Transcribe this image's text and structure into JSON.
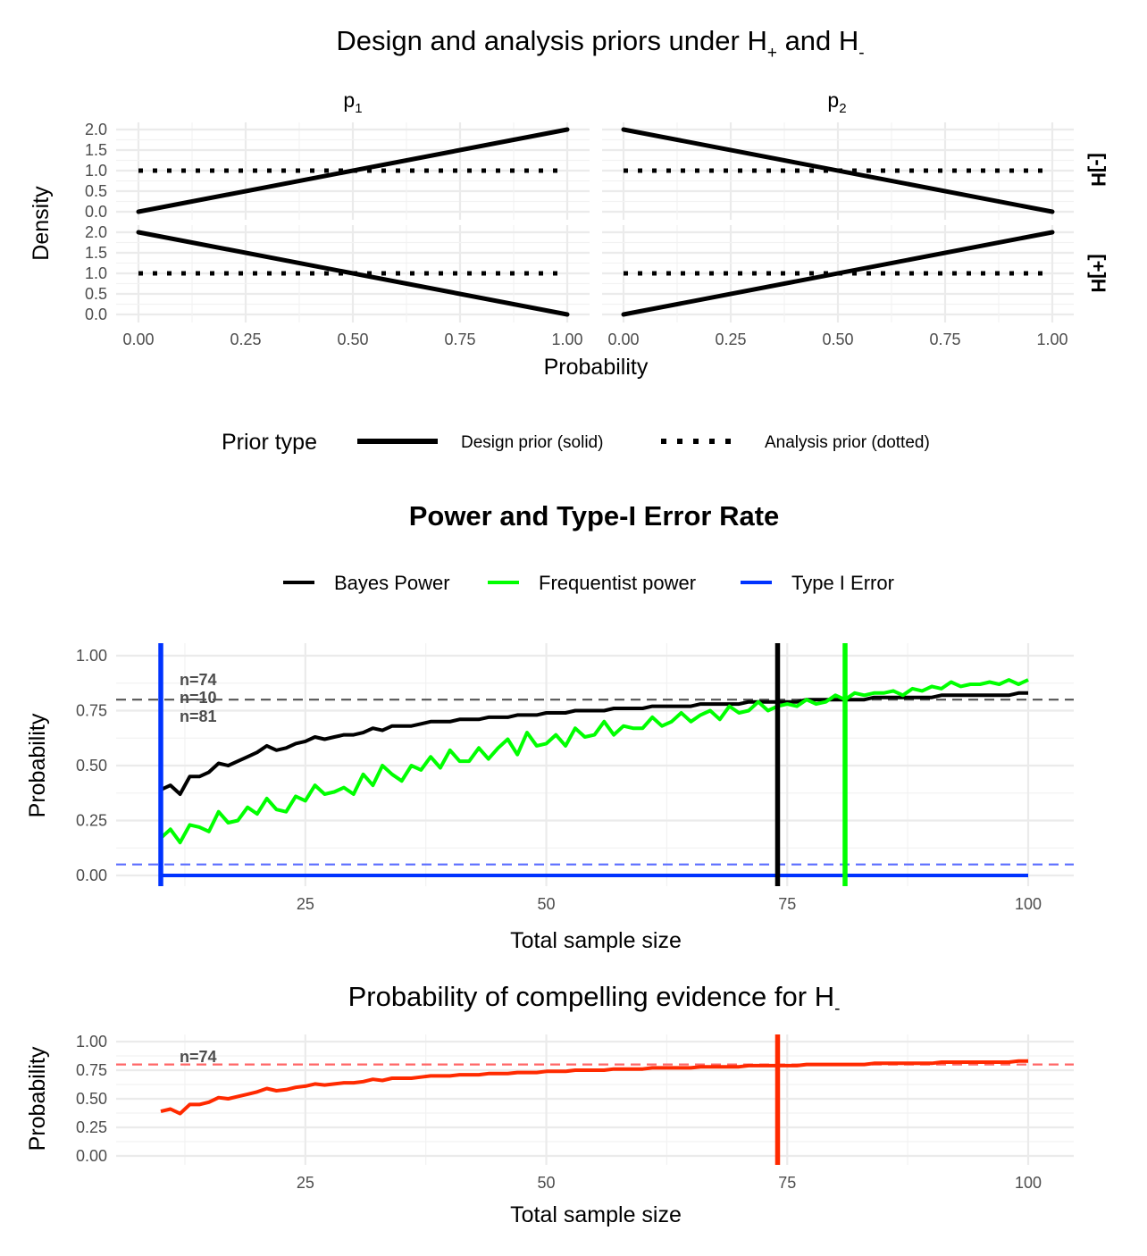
{
  "chart_data": [
    {
      "type": "line",
      "title": "Design and analysis priors under H",
      "title_sub1": "+",
      "title_mid": " and H",
      "title_sub2": "-",
      "facet_columns": [
        {
          "label": "p",
          "sub": "1"
        },
        {
          "label": "p",
          "sub": "2"
        }
      ],
      "facet_rows": [
        "[-]H",
        "[+]H"
      ],
      "xlabel": "Probability",
      "ylabel": "Density",
      "xlim": [
        0,
        1
      ],
      "ylim": [
        0,
        2
      ],
      "x_ticks": [
        "0.00",
        "0.25",
        "0.50",
        "0.75",
        "1.00"
      ],
      "y_ticks": [
        "0.0",
        "0.5",
        "1.0",
        "1.5",
        "2.0"
      ],
      "grid": true,
      "legend": {
        "title": "Prior type",
        "position": "bottom",
        "entries": [
          "Design prior (solid)",
          "Analysis prior (dotted)"
        ]
      },
      "panels": [
        {
          "row": "[-]H",
          "column": "p1",
          "design": {
            "x": [
              0,
              1
            ],
            "y": [
              0,
              2
            ]
          },
          "analysis": {
            "x": [
              0,
              1
            ],
            "y": [
              1,
              1
            ]
          }
        },
        {
          "row": "[-]H",
          "column": "p2",
          "design": {
            "x": [
              0,
              1
            ],
            "y": [
              2,
              0
            ]
          },
          "analysis": {
            "x": [
              0,
              1
            ],
            "y": [
              1,
              1
            ]
          }
        },
        {
          "row": "[+]H",
          "column": "p1",
          "design": {
            "x": [
              0,
              1
            ],
            "y": [
              2,
              0
            ]
          },
          "analysis": {
            "x": [
              0,
              1
            ],
            "y": [
              1,
              1
            ]
          }
        },
        {
          "row": "[+]H",
          "column": "p2",
          "design": {
            "x": [
              0,
              1
            ],
            "y": [
              0,
              2
            ]
          },
          "analysis": {
            "x": [
              0,
              1
            ],
            "y": [
              1,
              1
            ]
          }
        }
      ]
    },
    {
      "type": "line",
      "title": "Power and Type-I Error Rate",
      "xlabel": "Total sample size",
      "ylabel": "Probability",
      "xlim": [
        10,
        100
      ],
      "ylim": [
        0,
        1
      ],
      "x_ticks": [
        25,
        50,
        75,
        100
      ],
      "y_ticks": [
        "0.00",
        "0.25",
        "0.50",
        "0.75",
        "1.00"
      ],
      "grid": true,
      "legend_position": "top",
      "x": [
        10,
        11,
        12,
        13,
        14,
        15,
        16,
        17,
        18,
        19,
        20,
        21,
        22,
        23,
        24,
        25,
        26,
        27,
        28,
        29,
        30,
        31,
        32,
        33,
        34,
        35,
        36,
        37,
        38,
        39,
        40,
        41,
        42,
        43,
        44,
        45,
        46,
        47,
        48,
        49,
        50,
        51,
        52,
        53,
        54,
        55,
        56,
        57,
        58,
        59,
        60,
        61,
        62,
        63,
        64,
        65,
        66,
        67,
        68,
        69,
        70,
        71,
        72,
        73,
        74,
        75,
        76,
        77,
        78,
        79,
        80,
        81,
        82,
        83,
        84,
        85,
        86,
        87,
        88,
        89,
        90,
        91,
        92,
        93,
        94,
        95,
        96,
        97,
        98,
        99,
        100
      ],
      "series": [
        {
          "name": "Bayes Power",
          "color": "#000000",
          "values": [
            0.39,
            0.41,
            0.37,
            0.45,
            0.45,
            0.47,
            0.51,
            0.5,
            0.52,
            0.54,
            0.56,
            0.59,
            0.57,
            0.58,
            0.6,
            0.61,
            0.63,
            0.62,
            0.63,
            0.64,
            0.64,
            0.65,
            0.67,
            0.66,
            0.68,
            0.68,
            0.68,
            0.69,
            0.7,
            0.7,
            0.7,
            0.71,
            0.71,
            0.71,
            0.72,
            0.72,
            0.72,
            0.73,
            0.73,
            0.73,
            0.74,
            0.74,
            0.74,
            0.75,
            0.75,
            0.75,
            0.75,
            0.76,
            0.76,
            0.76,
            0.76,
            0.77,
            0.77,
            0.77,
            0.77,
            0.77,
            0.78,
            0.78,
            0.78,
            0.78,
            0.78,
            0.79,
            0.79,
            0.79,
            0.79,
            0.79,
            0.79,
            0.8,
            0.8,
            0.8,
            0.8,
            0.8,
            0.8,
            0.8,
            0.81,
            0.81,
            0.81,
            0.81,
            0.81,
            0.81,
            0.81,
            0.82,
            0.82,
            0.82,
            0.82,
            0.82,
            0.82,
            0.82,
            0.82,
            0.83,
            0.83
          ]
        },
        {
          "name": "Frequentist power",
          "color": "#00ff00",
          "values": [
            0.17,
            0.21,
            0.15,
            0.23,
            0.22,
            0.2,
            0.29,
            0.24,
            0.25,
            0.31,
            0.28,
            0.35,
            0.3,
            0.29,
            0.36,
            0.34,
            0.41,
            0.37,
            0.38,
            0.4,
            0.37,
            0.46,
            0.41,
            0.5,
            0.46,
            0.43,
            0.5,
            0.48,
            0.54,
            0.49,
            0.57,
            0.52,
            0.52,
            0.58,
            0.53,
            0.58,
            0.62,
            0.55,
            0.65,
            0.59,
            0.6,
            0.64,
            0.59,
            0.67,
            0.63,
            0.64,
            0.7,
            0.64,
            0.68,
            0.67,
            0.67,
            0.72,
            0.68,
            0.7,
            0.74,
            0.7,
            0.73,
            0.75,
            0.71,
            0.77,
            0.74,
            0.75,
            0.79,
            0.75,
            0.77,
            0.78,
            0.77,
            0.8,
            0.78,
            0.79,
            0.82,
            0.8,
            0.83,
            0.82,
            0.83,
            0.83,
            0.84,
            0.82,
            0.85,
            0.84,
            0.86,
            0.85,
            0.88,
            0.86,
            0.87,
            0.87,
            0.88,
            0.87,
            0.89,
            0.87,
            0.89
          ]
        },
        {
          "name": "Type I Error",
          "color": "#0033ff",
          "values": [
            0.0,
            0.0,
            0.0,
            0.0,
            0.0,
            0.0,
            0.0,
            0.0,
            0.0,
            0.0,
            0.0,
            0.0,
            0.0,
            0.0,
            0.0,
            0.0,
            0.0,
            0.0,
            0.0,
            0.0,
            0.0,
            0.0,
            0.0,
            0.0,
            0.0,
            0.0,
            0.0,
            0.0,
            0.0,
            0.0,
            0.0,
            0.0,
            0.0,
            0.0,
            0.0,
            0.0,
            0.0,
            0.0,
            0.0,
            0.0,
            0.0,
            0.0,
            0.0,
            0.0,
            0.0,
            0.0,
            0.0,
            0.0,
            0.0,
            0.0,
            0.0,
            0.0,
            0.0,
            0.0,
            0.0,
            0.0,
            0.0,
            0.0,
            0.0,
            0.0,
            0.0,
            0.0,
            0.0,
            0.0,
            0.0,
            0.0,
            0.0,
            0.0,
            0.0,
            0.0,
            0.0,
            0.0,
            0.0,
            0.0,
            0.0,
            0.0,
            0.0,
            0.0,
            0.0,
            0.0,
            0.0,
            0.0,
            0.0,
            0.0,
            0.0,
            0.0,
            0.0,
            0.0,
            0.0,
            0.0,
            0.0
          ]
        }
      ],
      "hlines": [
        {
          "y": 0.8,
          "color": "#555555",
          "style": "dashed"
        },
        {
          "y": 0.05,
          "color": "#5a6cff",
          "style": "dashed"
        }
      ],
      "vlines": [
        {
          "x": 74,
          "color": "#000000"
        },
        {
          "x": 81,
          "color": "#00ff00"
        },
        {
          "x": 10,
          "color": "#0033ff"
        }
      ],
      "annotations": [
        {
          "text": "n=74",
          "color": "#000000"
        },
        {
          "text": "n=10",
          "color": "#0033ff"
        },
        {
          "text": "n=81",
          "color": "#00ff00"
        }
      ]
    },
    {
      "type": "line",
      "title": "Probability of compelling evidence for H",
      "title_sub": "-",
      "xlabel": "Total sample size",
      "ylabel": "Probability",
      "xlim": [
        10,
        100
      ],
      "ylim": [
        0,
        1
      ],
      "x_ticks": [
        25,
        50,
        75,
        100
      ],
      "y_ticks": [
        "0.00",
        "0.25",
        "0.50",
        "0.75",
        "1.00"
      ],
      "grid": true,
      "series": [
        {
          "color": "#ff2a00",
          "values": [
            0.39,
            0.41,
            0.37,
            0.45,
            0.45,
            0.47,
            0.51,
            0.5,
            0.52,
            0.54,
            0.56,
            0.59,
            0.57,
            0.58,
            0.6,
            0.61,
            0.63,
            0.62,
            0.63,
            0.64,
            0.64,
            0.65,
            0.67,
            0.66,
            0.68,
            0.68,
            0.68,
            0.69,
            0.7,
            0.7,
            0.7,
            0.71,
            0.71,
            0.71,
            0.72,
            0.72,
            0.72,
            0.73,
            0.73,
            0.73,
            0.74,
            0.74,
            0.74,
            0.75,
            0.75,
            0.75,
            0.75,
            0.76,
            0.76,
            0.76,
            0.76,
            0.77,
            0.77,
            0.77,
            0.77,
            0.77,
            0.78,
            0.78,
            0.78,
            0.78,
            0.78,
            0.79,
            0.79,
            0.79,
            0.79,
            0.79,
            0.79,
            0.8,
            0.8,
            0.8,
            0.8,
            0.8,
            0.8,
            0.8,
            0.81,
            0.81,
            0.81,
            0.81,
            0.81,
            0.81,
            0.81,
            0.82,
            0.82,
            0.82,
            0.82,
            0.82,
            0.82,
            0.82,
            0.82,
            0.83,
            0.83
          ]
        }
      ],
      "hlines": [
        {
          "y": 0.8,
          "color": "#ff6666",
          "style": "dashed"
        }
      ],
      "vlines": [
        {
          "x": 74,
          "color": "#ff2a00"
        }
      ],
      "annotations": [
        {
          "text": "n=74",
          "color": "#ff2a00"
        }
      ]
    }
  ]
}
